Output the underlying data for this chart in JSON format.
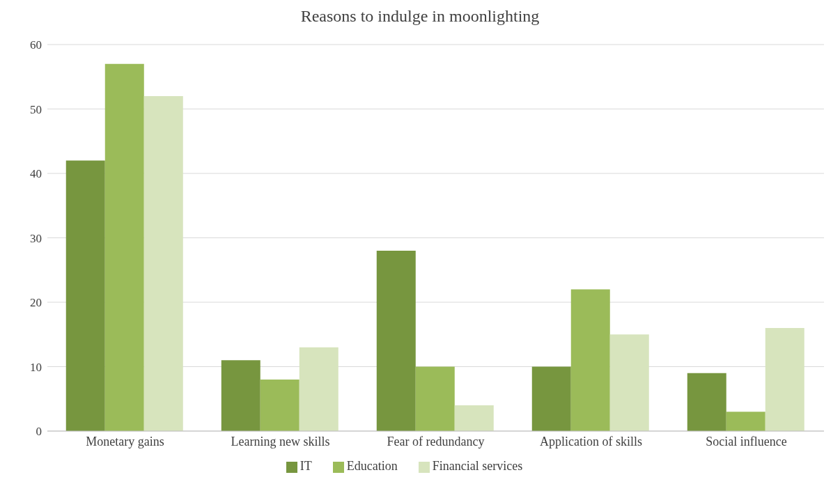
{
  "chart_data": {
    "type": "bar",
    "title": "Reasons to indulge in moonlighting",
    "categories": [
      "Monetary gains",
      "Learning new skills",
      "Fear of redundancy",
      "Application of skills",
      "Social influence"
    ],
    "series": [
      {
        "name": "IT",
        "color": "#77963f",
        "values": [
          42,
          11,
          28,
          10,
          9
        ]
      },
      {
        "name": "Education",
        "color": "#9bbb59",
        "values": [
          57,
          8,
          10,
          22,
          3
        ]
      },
      {
        "name": "Financial services",
        "color": "#d7e4bd",
        "values": [
          52,
          13,
          4,
          15,
          16
        ]
      }
    ],
    "ylim": [
      0,
      60
    ],
    "yticks": [
      0,
      10,
      20,
      30,
      40,
      50,
      60
    ],
    "grid": "y",
    "legend": "bottom"
  }
}
